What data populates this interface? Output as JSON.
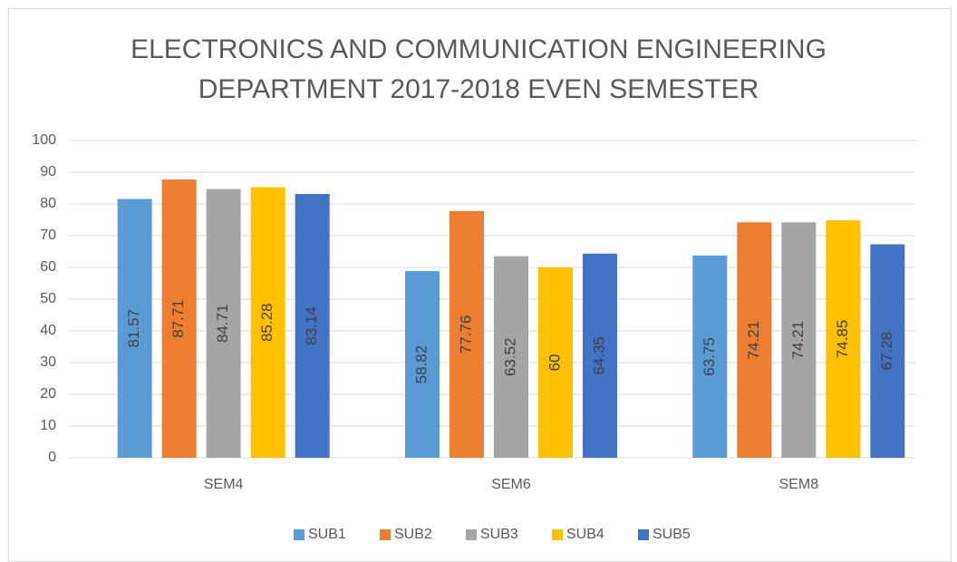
{
  "chart_data": {
    "type": "bar",
    "title": [
      "ELECTRONICS AND COMMUNICATION ENGINEERING",
      "DEPARTMENT 2017-2018 EVEN SEMESTER"
    ],
    "categories": [
      "SEM4",
      "SEM6",
      "SEM8"
    ],
    "series": [
      {
        "name": "SUB1",
        "color": "#5b9bd5",
        "values": [
          81.57,
          58.82,
          63.75
        ]
      },
      {
        "name": "SUB2",
        "color": "#ed7d31",
        "values": [
          87.71,
          77.76,
          74.21
        ]
      },
      {
        "name": "SUB3",
        "color": "#a5a5a5",
        "values": [
          84.71,
          63.52,
          74.21
        ]
      },
      {
        "name": "SUB4",
        "color": "#ffc000",
        "values": [
          85.28,
          60,
          74.85
        ]
      },
      {
        "name": "SUB5",
        "color": "#4472c4",
        "values": [
          83.14,
          64.35,
          67.28
        ]
      }
    ],
    "ylim": [
      0,
      100
    ],
    "yticks": [
      0,
      10,
      20,
      30,
      40,
      50,
      60,
      70,
      80,
      90,
      100
    ],
    "grid": true,
    "legend": "bottom",
    "data_labels": true
  }
}
